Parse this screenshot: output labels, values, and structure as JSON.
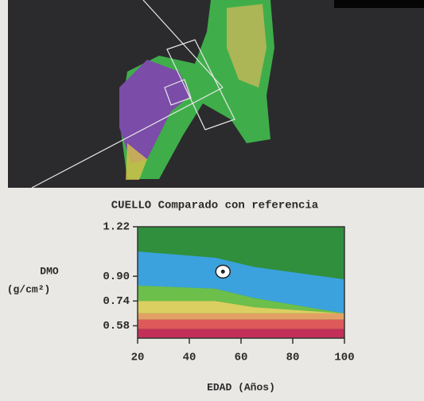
{
  "chart_data": {
    "type": "reference-bands",
    "title": "CUELLO Comparado con referencia",
    "ylabel_lines": [
      "DMO",
      "(g/cm²)"
    ],
    "xlabel": "EDAD (Años)",
    "xlim": [
      20,
      100
    ],
    "xticks": [
      20,
      40,
      60,
      80,
      100
    ],
    "ylim": [
      0.5,
      1.22
    ],
    "yticks": [
      {
        "value": 0.58,
        "label": "0.58"
      },
      {
        "value": 0.74,
        "label": "0.74"
      },
      {
        "value": 0.9,
        "label": "0.90"
      },
      1.22
    ],
    "plot_color": "#2f8f3c",
    "bands": [
      {
        "color": "#6cbf4a",
        "x": [
          20,
          50,
          65,
          100
        ],
        "lower": [
          0.74,
          0.74,
          0.7,
          0.66
        ],
        "upper": [
          0.84,
          0.82,
          0.76,
          0.66
        ]
      },
      {
        "color": "#dccf62",
        "x": [
          20,
          50,
          65,
          100
        ],
        "lower": [
          0.66,
          0.66,
          0.66,
          0.66
        ],
        "upper": [
          0.74,
          0.74,
          0.7,
          0.66
        ]
      },
      {
        "color": "#e3a066",
        "x": [
          20,
          100
        ],
        "lower": [
          0.62,
          0.62
        ],
        "upper": [
          0.66,
          0.66
        ]
      },
      {
        "color": "#dd5a5a",
        "x": [
          20,
          100
        ],
        "lower": [
          0.56,
          0.56
        ],
        "upper": [
          0.62,
          0.62
        ]
      },
      {
        "color": "#c42f5a",
        "x": [
          20,
          100
        ],
        "lower": [
          0.5,
          0.5
        ],
        "upper": [
          0.56,
          0.56
        ]
      },
      {
        "color": "#3ba2de",
        "x": [
          20,
          50,
          65,
          100
        ],
        "lower": [
          0.84,
          0.82,
          0.76,
          0.66
        ],
        "upper": [
          1.06,
          1.02,
          0.96,
          0.88
        ]
      }
    ],
    "patient": {
      "x": 53,
      "y": 0.93,
      "color": "#ffffff"
    }
  }
}
